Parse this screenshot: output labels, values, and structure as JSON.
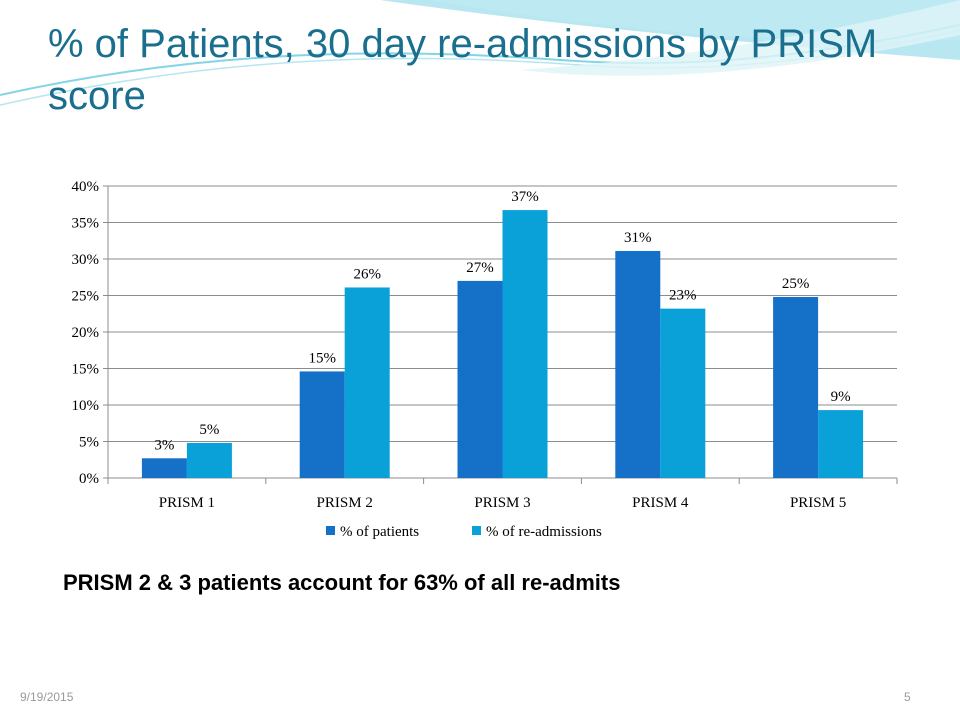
{
  "slide": {
    "title": "% of Patients, 30 day re-admissions by PRISM score",
    "caption": "PRISM 2 & 3 patients account for 63% of all re-admits",
    "footer_date": "9/19/2015",
    "footer_page": "5"
  },
  "colors": {
    "title": "#1a6f8e",
    "series_patients": "#1570c8",
    "series_readmissions": "#0aa0d8",
    "gridline": "#8c8c8c"
  },
  "chart_data": {
    "type": "bar",
    "categories": [
      "PRISM 1",
      "PRISM 2",
      "PRISM 3",
      "PRISM 4",
      "PRISM 5"
    ],
    "series": [
      {
        "name": "% of patients",
        "values": [
          2.7,
          14.6,
          27.0,
          31.1,
          24.8
        ],
        "labels": [
          "3%",
          "15%",
          "27%",
          "31%",
          "25%"
        ]
      },
      {
        "name": "% of re-admissions",
        "values": [
          4.8,
          26.1,
          36.7,
          23.2,
          9.3
        ],
        "labels": [
          "5%",
          "26%",
          "37%",
          "23%",
          "9%"
        ]
      }
    ],
    "ylim": [
      0,
      40
    ],
    "yticks": [
      0,
      5,
      10,
      15,
      20,
      25,
      30,
      35,
      40
    ],
    "ytick_labels": [
      "0%",
      "5%",
      "10%",
      "15%",
      "20%",
      "25%",
      "30%",
      "35%",
      "40%"
    ],
    "grid": true,
    "legend_position": "bottom"
  }
}
